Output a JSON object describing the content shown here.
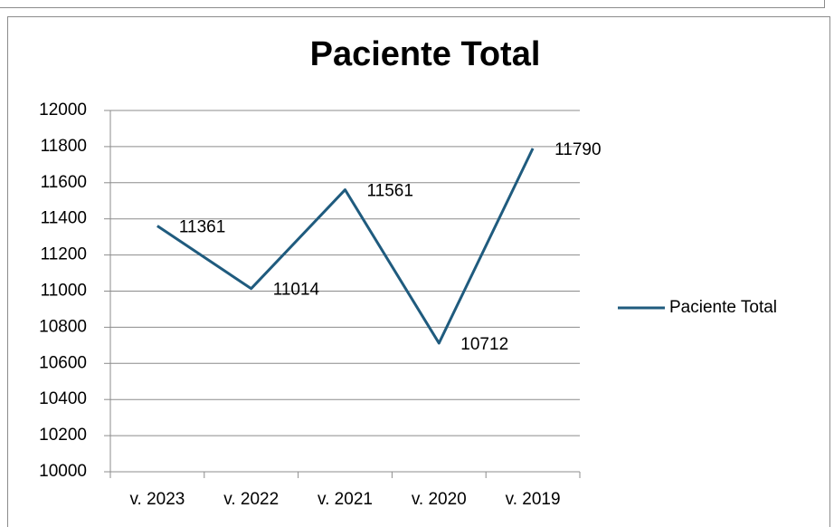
{
  "chart_data": {
    "type": "line",
    "title": "Paciente Total",
    "categories": [
      "v. 2023",
      "v. 2022",
      "v. 2021",
      "v. 2020",
      "v. 2019"
    ],
    "series": [
      {
        "name": "Paciente Total",
        "color": "#1f5b7e",
        "values": [
          11361,
          11014,
          11561,
          10712,
          11790
        ]
      }
    ],
    "ylim": [
      10000,
      12000
    ],
    "yticks": [
      10000,
      10200,
      10400,
      10600,
      10800,
      11000,
      11200,
      11400,
      11600,
      11800,
      12000
    ],
    "grid": true,
    "legend": "right",
    "data_labels": true
  }
}
